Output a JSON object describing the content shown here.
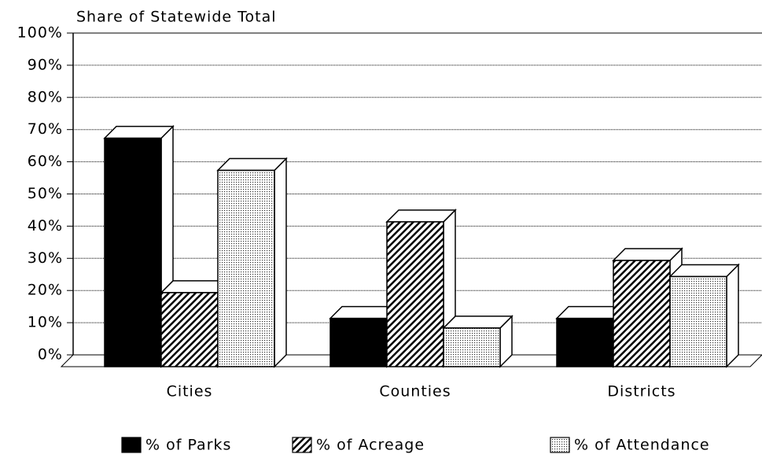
{
  "chart_data": {
    "type": "bar3d",
    "y_axis_label": "Share of Statewide Total",
    "categories": [
      "Cities",
      "Counties",
      "Districts"
    ],
    "series": [
      {
        "name": "% of Parks",
        "color": "#000000",
        "pattern": "solid",
        "values": [
          71,
          15,
          15
        ]
      },
      {
        "name": "% of Acreage",
        "color": "#000000",
        "pattern": "hatch",
        "values": [
          23,
          45,
          33
        ]
      },
      {
        "name": "% of Attendance",
        "color": "#000000",
        "pattern": "dots",
        "values": [
          61,
          12,
          28
        ]
      }
    ],
    "ylim": [
      0,
      100
    ],
    "yticks": [
      {
        "value": 0,
        "label": "0%"
      },
      {
        "value": 10,
        "label": "10%"
      },
      {
        "value": 20,
        "label": "20%"
      },
      {
        "value": 30,
        "label": "30%"
      },
      {
        "value": 40,
        "label": "40%"
      },
      {
        "value": 50,
        "label": "50%"
      },
      {
        "value": 60,
        "label": "60%"
      },
      {
        "value": 70,
        "label": "70%"
      },
      {
        "value": 80,
        "label": "80%"
      },
      {
        "value": 90,
        "label": "90%"
      },
      {
        "value": 100,
        "label": "100%"
      }
    ],
    "grid": true,
    "legend": "bottom"
  }
}
